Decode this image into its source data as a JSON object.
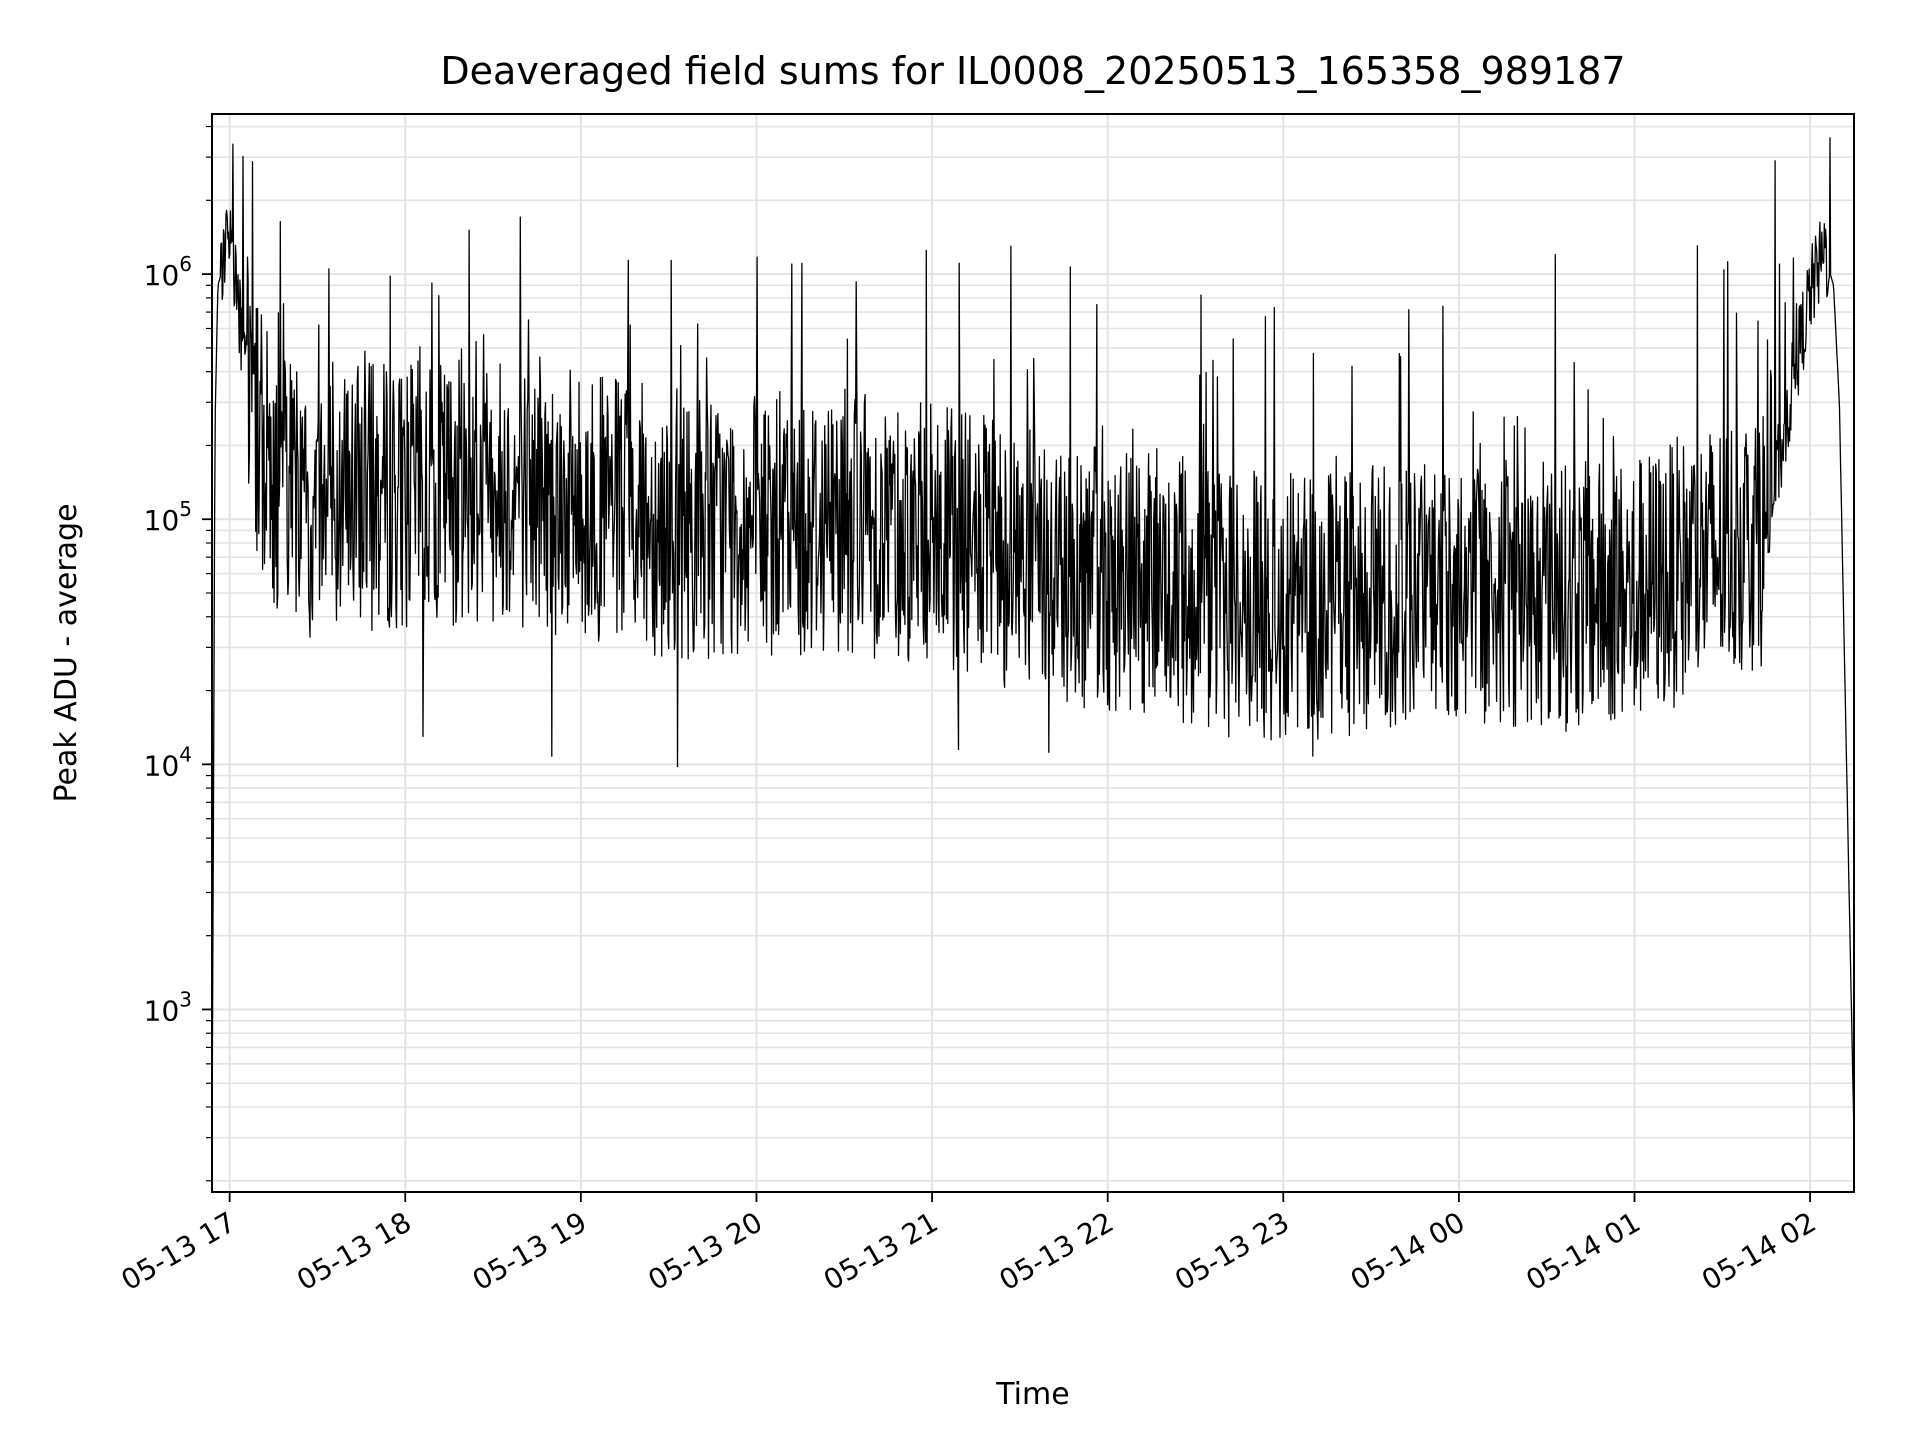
{
  "chart_data": {
    "type": "line",
    "title": "Deaveraged field sums for IL0008_20250513_165358_989187",
    "xlabel": "Time",
    "ylabel": "Peak ADU - average",
    "y_scale": "log",
    "grid": true,
    "line_color": "#000000",
    "grid_color": "#e3e3e3",
    "x_range": [
      "2025-05-13 16:53:58",
      "2025-05-14 02:15:00"
    ],
    "ylim": [
      180,
      4500000
    ],
    "x_ticks": [
      {
        "time": "2025-05-13 17:00",
        "label": "05-13 17"
      },
      {
        "time": "2025-05-13 18:00",
        "label": "05-13 18"
      },
      {
        "time": "2025-05-13 19:00",
        "label": "05-13 19"
      },
      {
        "time": "2025-05-13 20:00",
        "label": "05-13 20"
      },
      {
        "time": "2025-05-13 21:00",
        "label": "05-13 21"
      },
      {
        "time": "2025-05-13 22:00",
        "label": "05-13 22"
      },
      {
        "time": "2025-05-13 23:00",
        "label": "05-13 23"
      },
      {
        "time": "2025-05-14 00:00",
        "label": "05-14 00"
      },
      {
        "time": "2025-05-14 01:00",
        "label": "05-14 01"
      },
      {
        "time": "2025-05-14 02:00",
        "label": "05-14 02"
      }
    ],
    "y_ticks": [
      {
        "value": 1000,
        "base": "10",
        "exp": "3"
      },
      {
        "value": 10000,
        "base": "10",
        "exp": "4"
      },
      {
        "value": 100000,
        "base": "10",
        "exp": "5"
      },
      {
        "value": 1000000,
        "base": "10",
        "exp": "6"
      }
    ],
    "series": [
      {
        "points": [
          [
            "2025-05-13 16:54",
            300
          ],
          [
            "2025-05-13 16:55",
            250000
          ],
          [
            "2025-05-13 16:56",
            900000
          ],
          [
            "2025-05-13 16:58",
            1100000
          ],
          [
            "2025-05-13 17:00",
            1300000
          ],
          [
            "2025-05-13 17:02",
            900000
          ],
          [
            "2025-05-13 17:05",
            450000
          ],
          [
            "2025-05-13 17:08",
            250000
          ],
          [
            "2025-05-13 17:15",
            120000
          ],
          [
            "2025-05-13 17:30",
            100000
          ],
          [
            "2025-05-13 17:45",
            110000
          ],
          [
            "2025-05-13 18:00",
            110000
          ],
          [
            "2025-05-13 18:30",
            120000
          ],
          [
            "2025-05-13 19:00",
            100000
          ],
          [
            "2025-05-13 19:30",
            85000
          ],
          [
            "2025-05-13 20:00",
            80000
          ],
          [
            "2025-05-13 20:30",
            90000
          ],
          [
            "2025-05-13 21:00",
            75000
          ],
          [
            "2025-05-13 21:30",
            60000
          ],
          [
            "2025-05-13 22:00",
            50000
          ],
          [
            "2025-05-13 22:30",
            42000
          ],
          [
            "2025-05-13 23:00",
            38000
          ],
          [
            "2025-05-13 23:30",
            42000
          ],
          [
            "2025-05-14 00:00",
            45000
          ],
          [
            "2025-05-14 00:30",
            42000
          ],
          [
            "2025-05-14 01:00",
            45000
          ],
          [
            "2025-05-14 01:30",
            65000
          ],
          [
            "2025-05-14 01:45",
            80000
          ],
          [
            "2025-05-14 01:50",
            180000
          ],
          [
            "2025-05-14 01:55",
            400000
          ],
          [
            "2025-05-14 02:00",
            800000
          ],
          [
            "2025-05-14 02:05",
            1200000
          ],
          [
            "2025-05-14 02:08",
            900000
          ],
          [
            "2025-05-14 02:10",
            300000
          ],
          [
            "2025-05-14 02:15",
            300
          ]
        ],
        "spikes": [
          [
            "2025-05-13 17:34",
            1050000
          ],
          [
            "2025-05-13 18:09",
            920000
          ],
          [
            "2025-05-13 18:42",
            650000
          ],
          [
            "2025-05-13 20:12",
            1100000
          ],
          [
            "2025-05-13 20:34",
            930000
          ],
          [
            "2025-05-13 20:58",
            1250000
          ],
          [
            "2025-05-13 21:27",
            1300000
          ],
          [
            "2025-05-13 22:32",
            820000
          ],
          [
            "2025-05-14 00:33",
            1200000
          ],
          [
            "2025-05-14 01:48",
            2900000
          ]
        ],
        "dips": [
          [
            "2025-05-13 18:06",
            13000
          ],
          [
            "2025-05-13 18:50",
            10800
          ],
          [
            "2025-05-13 19:33",
            9800
          ],
          [
            "2025-05-13 21:09",
            11500
          ],
          [
            "2025-05-13 21:40",
            11200
          ],
          [
            "2025-05-13 23:10",
            10800
          ],
          [
            "2025-05-14 01:00",
            17500
          ]
        ]
      }
    ]
  }
}
